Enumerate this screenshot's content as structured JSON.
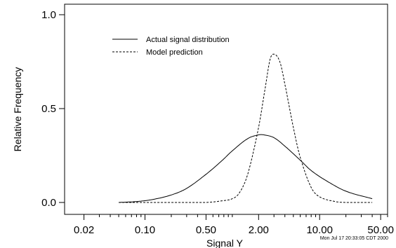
{
  "chart_data": {
    "type": "line",
    "title": "",
    "xlabel": "Signal Y",
    "ylabel": "Relative Frequency",
    "x_scale": "log",
    "xlim": [
      0.012,
      60
    ],
    "ylim": [
      0,
      1.0
    ],
    "x_ticks": [
      0.02,
      0.1,
      0.5,
      2.0,
      10.0,
      50.0
    ],
    "x_tick_labels": [
      "0.02",
      "0.10",
      "0.50",
      "2.00",
      "10.00",
      "50.00"
    ],
    "y_ticks": [
      0,
      0.5,
      1.0
    ],
    "y_tick_labels": [
      "0.0",
      "0.5",
      "1.0"
    ],
    "grid": false,
    "legend_position": "top-left",
    "series": [
      {
        "name": "Actual signal distribution",
        "line_style": "solid",
        "color": "#000000",
        "x": [
          0.05,
          0.08,
          0.12,
          0.2,
          0.3,
          0.5,
          0.75,
          1.0,
          1.5,
          2.0,
          2.3,
          3.0,
          4.0,
          6.0,
          8.0,
          12.0,
          20.0,
          40.0
        ],
        "y": [
          0.0,
          0.005,
          0.015,
          0.04,
          0.075,
          0.15,
          0.22,
          0.275,
          0.34,
          0.36,
          0.36,
          0.345,
          0.3,
          0.225,
          0.17,
          0.115,
          0.06,
          0.02
        ]
      },
      {
        "name": "Model prediction",
        "line_style": "dashed",
        "color": "#000000",
        "x": [
          0.05,
          0.2,
          0.5,
          0.8,
          1.0,
          1.2,
          1.5,
          2.0,
          2.4,
          2.7,
          3.0,
          3.5,
          4.0,
          5.0,
          6.0,
          8.0,
          10.0,
          15.0,
          20.0,
          40.0
        ],
        "y": [
          0.0,
          0.0,
          0.0,
          0.01,
          0.02,
          0.05,
          0.15,
          0.4,
          0.62,
          0.76,
          0.79,
          0.75,
          0.63,
          0.4,
          0.24,
          0.08,
          0.03,
          0.005,
          0.0,
          0.0
        ]
      }
    ]
  },
  "timestamp": "Mon Jul 17 20:33:05 CDT 2000"
}
